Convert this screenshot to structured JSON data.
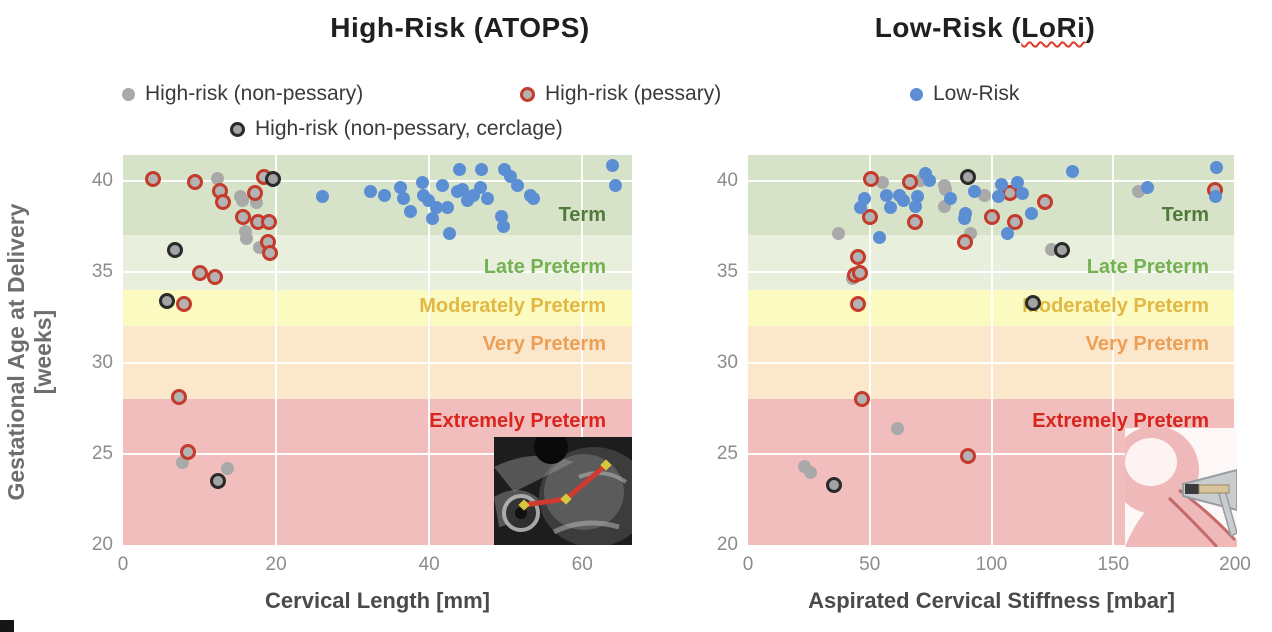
{
  "titles": {
    "left": {
      "prefix": "High-Risk (ATOPS)",
      "wavy": "",
      "suffix": ""
    },
    "right": {
      "prefix": "Low-Risk (",
      "wavy": "LoRi",
      "suffix": ")"
    }
  },
  "legend": {
    "row1": [
      {
        "label": "High-risk (non-pessary)",
        "marker": "gray"
      },
      {
        "label": "High-risk (pessary)",
        "marker": "red-ring"
      },
      {
        "label": "Low-Risk",
        "marker": "blue"
      }
    ],
    "row2": [
      {
        "label": "High-risk (non-pessary, cerclage)",
        "marker": "black-ring"
      }
    ]
  },
  "y_axis": {
    "title_line1": "Gestational Age at Delivery",
    "title_line2": "[weeks]",
    "ticks": [
      20,
      25,
      30,
      35,
      40
    ],
    "lim": [
      20,
      41.4
    ]
  },
  "bands": [
    {
      "label": "Term",
      "from": 37,
      "to": 41.4,
      "fill": "#d7e3c8",
      "label_color": "#507a3a",
      "label_week": 38.0
    },
    {
      "label": "Late Preterm",
      "from": 34,
      "to": 37,
      "fill": "#e8efdc",
      "label_color": "#73b152",
      "label_week": 35.15
    },
    {
      "label": "Moderately Preterm",
      "from": 32,
      "to": 34,
      "fill": "#fbfac1",
      "label_color": "#e2b844",
      "label_week": 33.0
    },
    {
      "label": "Very Preterm",
      "from": 28,
      "to": 32,
      "fill": "#fbe7cb",
      "label_color": "#ec9f55",
      "label_week": 30.9
    },
    {
      "label": "Extremely Preterm",
      "from": 20,
      "to": 28,
      "fill": "#f2bdbd",
      "label_color": "#d9251d",
      "label_week": 26.7
    }
  ],
  "colors": {
    "high_risk_non_pessary": "#a9a9a9",
    "high_risk_pessary_fill": "#b3b3b3",
    "high_risk_pessary_ring": "#c43a2b",
    "high_risk_cerclage_fill": "#a3a3a3",
    "high_risk_cerclage_ring": "#2a2a2a",
    "low_risk": "#5b8ed3",
    "gridline": "#ffffff"
  },
  "chart_data": [
    {
      "type": "scatter",
      "title": "High-Risk (ATOPS)",
      "xlabel": "Cervical Length [mm]",
      "ylabel": "Gestational Age at Delivery [weeks]",
      "xlim": [
        0,
        66.5
      ],
      "x_ticks": [
        0,
        20,
        40,
        60
      ],
      "ylim": [
        20,
        41.4
      ],
      "grid": true,
      "inset": "transvaginal-ultrasound-cervical-length-measurement",
      "series": [
        {
          "name": "High-risk (non-pessary)",
          "marker": {
            "fill": "#a9a9a9"
          },
          "points": [
            [
              12.3,
              40.1
            ],
            [
              15.3,
              39.1
            ],
            [
              15.6,
              38.9
            ],
            [
              17.5,
              38.8
            ],
            [
              16,
              37.2
            ],
            [
              16.2,
              36.8
            ],
            [
              17.8,
              36.3
            ],
            [
              7.8,
              24.5
            ],
            [
              13.7,
              24.2
            ]
          ]
        },
        {
          "name": "High-risk (pessary)",
          "marker": {
            "fill": "#b3b3b3",
            "stroke": "#c43a2b"
          },
          "points": [
            [
              3.9,
              40.1
            ],
            [
              9.4,
              39.9
            ],
            [
              18.4,
              40.2
            ],
            [
              12.7,
              39.4
            ],
            [
              13.1,
              38.8
            ],
            [
              17.3,
              39.3
            ],
            [
              15.7,
              38
            ],
            [
              17.6,
              37.7
            ],
            [
              19.1,
              37.7
            ],
            [
              19,
              36.6
            ],
            [
              19.2,
              36
            ],
            [
              10.1,
              34.9
            ],
            [
              12,
              34.7
            ],
            [
              8,
              33.2
            ],
            [
              7.3,
              28.1
            ],
            [
              8.5,
              25.1
            ]
          ]
        },
        {
          "name": "High-risk (non-pessary, cerclage)",
          "marker": {
            "fill": "#a3a3a3",
            "stroke": "#2a2a2a"
          },
          "points": [
            [
              19.6,
              40.1
            ],
            [
              6.8,
              36.2
            ],
            [
              5.8,
              33.4
            ],
            [
              12.4,
              23.5
            ]
          ]
        },
        {
          "name": "Low-Risk",
          "marker": {
            "fill": "#5b8ed3"
          },
          "points": [
            [
              26.1,
              39.1
            ],
            [
              32.3,
              39.4
            ],
            [
              34.2,
              39.2
            ],
            [
              36.2,
              39.6
            ],
            [
              36.6,
              39
            ],
            [
              37.5,
              38.3
            ],
            [
              39.1,
              39.9
            ],
            [
              39.2,
              39.2
            ],
            [
              39.9,
              38.9
            ],
            [
              40.4,
              37.9
            ],
            [
              41,
              38.5
            ],
            [
              41.7,
              39.7
            ],
            [
              42.4,
              38.5
            ],
            [
              42.7,
              37.1
            ],
            [
              43.7,
              39.4
            ],
            [
              44,
              40.6
            ],
            [
              44.4,
              39.5
            ],
            [
              45,
              38.9
            ],
            [
              45.8,
              39.2
            ],
            [
              46.7,
              39.6
            ],
            [
              46.9,
              40.6
            ],
            [
              47.6,
              39
            ],
            [
              49.5,
              38
            ],
            [
              49.7,
              37.5
            ],
            [
              49.9,
              40.6
            ],
            [
              50.6,
              40.2
            ],
            [
              51.5,
              39.7
            ],
            [
              53.2,
              39.2
            ],
            [
              53.6,
              39
            ],
            [
              64,
              40.8
            ],
            [
              64.3,
              39.7
            ]
          ]
        }
      ]
    },
    {
      "type": "scatter",
      "title": "Low-Risk (LoRi)",
      "xlabel": "Aspirated Cervical Stiffness [mbar]",
      "ylabel": "Gestational Age at Delivery [weeks]",
      "xlim": [
        0,
        200
      ],
      "x_ticks": [
        0,
        50,
        100,
        150,
        200
      ],
      "ylim": [
        20,
        41.4
      ],
      "grid": true,
      "inset": "cervical-stiffness-aspiration-device-illustration",
      "series": [
        {
          "name": "High-risk (non-pessary)",
          "marker": {
            "fill": "#a9a9a9"
          },
          "points": [
            [
              55.4,
              39.9
            ],
            [
              71,
              40
            ],
            [
              80.9,
              39.7
            ],
            [
              81.3,
              39.5
            ],
            [
              80.9,
              38.6
            ],
            [
              91.2,
              37.1
            ],
            [
              37,
              37.1
            ],
            [
              43.1,
              34.6
            ],
            [
              97.3,
              39.2
            ],
            [
              124.8,
              36.2
            ],
            [
              160.2,
              39.4
            ],
            [
              61.6,
              26.4
            ],
            [
              23.4,
              24.3
            ],
            [
              25.5,
              24
            ]
          ]
        },
        {
          "name": "High-risk (pessary)",
          "marker": {
            "fill": "#b3b3b3",
            "stroke": "#c43a2b"
          },
          "points": [
            [
              50.5,
              40.1
            ],
            [
              66.5,
              39.9
            ],
            [
              50.1,
              38
            ],
            [
              68.6,
              37.7
            ],
            [
              89.1,
              36.6
            ],
            [
              45.2,
              35.8
            ],
            [
              43.9,
              34.8
            ],
            [
              46,
              34.9
            ],
            [
              45.2,
              33.2
            ],
            [
              100.2,
              38
            ],
            [
              107.6,
              39.3
            ],
            [
              109.7,
              37.7
            ],
            [
              122,
              38.8
            ],
            [
              191.8,
              39.5
            ],
            [
              46.8,
              28
            ],
            [
              90.3,
              24.9
            ]
          ]
        },
        {
          "name": "High-risk (non-pessary, cerclage)",
          "marker": {
            "fill": "#a3a3a3",
            "stroke": "#2a2a2a"
          },
          "points": [
            [
              90.3,
              40.2
            ],
            [
              129,
              36.2
            ],
            [
              117,
              33.3
            ],
            [
              35.3,
              23.3
            ]
          ]
        },
        {
          "name": "Low-Risk",
          "marker": {
            "fill": "#5b8ed3"
          },
          "points": [
            [
              48,
              39
            ],
            [
              46.4,
              38.5
            ],
            [
              56.7,
              39.2
            ],
            [
              58.7,
              38.5
            ],
            [
              62.4,
              39.2
            ],
            [
              63.7,
              38.9
            ],
            [
              69.8,
              39.1
            ],
            [
              68.6,
              38.6
            ],
            [
              72.7,
              40.4
            ],
            [
              74.7,
              40
            ],
            [
              83,
              39
            ],
            [
              93.2,
              39.4
            ],
            [
              89.5,
              38.2
            ],
            [
              89.1,
              37.9
            ],
            [
              54.2,
              36.9
            ],
            [
              102.7,
              39.1
            ],
            [
              104.3,
              39.8
            ],
            [
              110.5,
              39.9
            ],
            [
              112.9,
              39.3
            ],
            [
              116.6,
              38.2
            ],
            [
              106.4,
              37.1
            ],
            [
              133.1,
              40.5
            ],
            [
              163.9,
              39.6
            ],
            [
              192.6,
              40.7
            ],
            [
              191.8,
              39.1
            ]
          ]
        }
      ]
    }
  ]
}
